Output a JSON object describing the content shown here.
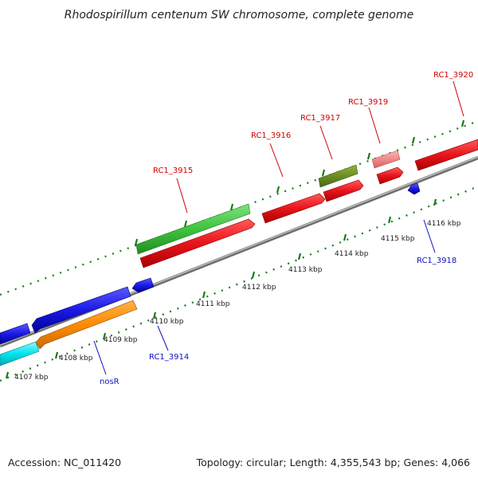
{
  "title": "Rhodospirillum centenum SW chromosome, complete genome",
  "footer": {
    "accession": "Accession: NC_011420",
    "topology": "Topology: circular; Length: 4,355,543 bp; Genes: 4,066"
  },
  "tick_labels": [
    "4107 kbp",
    "4108 kbp",
    "4109 kbp",
    "4110 kbp",
    "4111 kbp",
    "4112 kbp",
    "4113 kbp",
    "4114 kbp",
    "4115 kbp",
    "4116 kbp"
  ],
  "gene_labels": {
    "rc1_3914": "RC1_3914",
    "rc1_3915": "RC1_3915",
    "rc1_3916": "RC1_3916",
    "rc1_3917": "RC1_3917",
    "rc1_3918": "RC1_3918",
    "rc1_3919": "RC1_3919",
    "rc1_3920": "RC1_3920",
    "nosR": "nosR"
  },
  "colors": {
    "backbone": "#8a8a8a",
    "tick": "#1a7a1a",
    "forward_label": "#d40000",
    "reverse_label": "#1010c0",
    "red": "#e8141c",
    "green": "#3ec43e",
    "olive": "#6b8e23",
    "pink": "#f08a8a",
    "blue": "#1a1ae6",
    "orange": "#ff8c00",
    "cyan": "#00e5ee"
  }
}
